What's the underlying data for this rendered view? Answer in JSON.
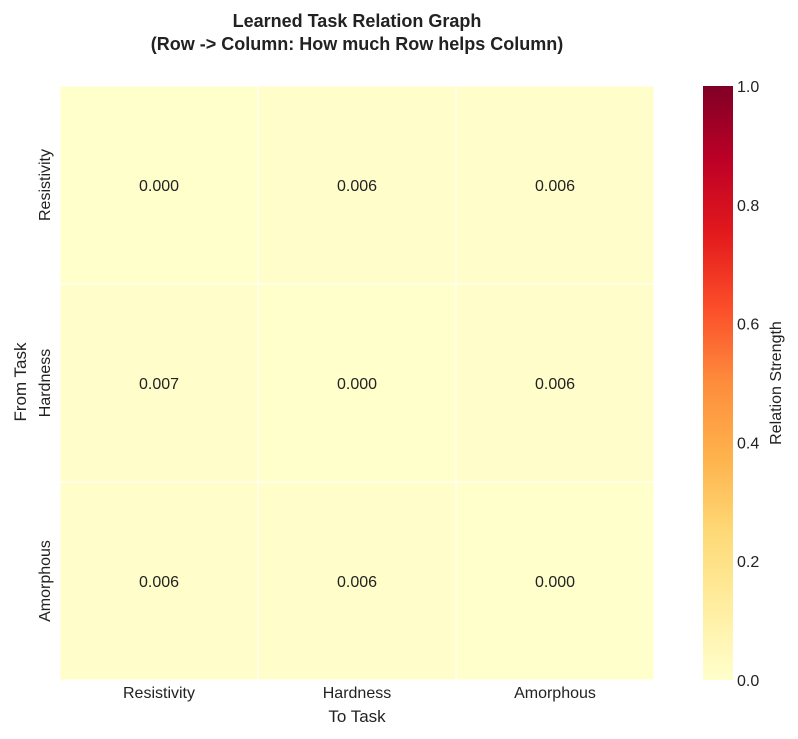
{
  "chart_data": {
    "type": "heatmap",
    "title": "Learned Task Relation Graph",
    "subtitle": "(Row -> Column: How much Row helps Column)",
    "xlabel": "To Task",
    "ylabel": "From Task",
    "rows": [
      "Resistivity",
      "Hardness",
      "Amorphous"
    ],
    "columns": [
      "Resistivity",
      "Hardness",
      "Amorphous"
    ],
    "values": [
      [
        0.0,
        0.006,
        0.006
      ],
      [
        0.007,
        0.0,
        0.006
      ],
      [
        0.006,
        0.006,
        0.0
      ]
    ],
    "cell_labels": [
      [
        "0.000",
        "0.006",
        "0.006"
      ],
      [
        "0.007",
        "0.000",
        "0.006"
      ],
      [
        "0.006",
        "0.006",
        "0.000"
      ]
    ],
    "colorbar": {
      "label": "Relation Strength",
      "range": [
        0.0,
        1.0
      ],
      "ticks": [
        "0.0",
        "0.2",
        "0.4",
        "0.6",
        "0.8",
        "1.0"
      ],
      "colormap": "YlOrRd"
    }
  }
}
